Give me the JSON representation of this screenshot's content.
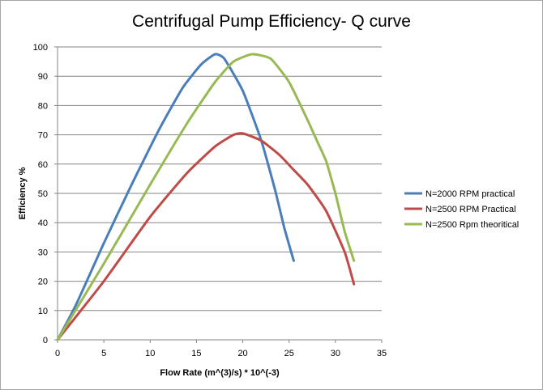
{
  "chart_data": {
    "type": "line",
    "title": "Centrifugal Pump Efficiency- Q curve",
    "xlabel": "Flow Rate (m^(3)/s) * 10^(-3)",
    "ylabel": "Efficiency %",
    "xlim": [
      0,
      35
    ],
    "ylim": [
      0,
      100
    ],
    "xticks": [
      0,
      5,
      10,
      15,
      20,
      25,
      30,
      35
    ],
    "yticks": [
      0,
      10,
      20,
      30,
      40,
      50,
      60,
      70,
      80,
      90,
      100
    ],
    "grid": "horizontal",
    "legend_position": "right",
    "series": [
      {
        "name": "N=2000 RPM practical",
        "color": "#4a7ebb",
        "points": [
          [
            0,
            0
          ],
          [
            2,
            12
          ],
          [
            5,
            33
          ],
          [
            8,
            53
          ],
          [
            11,
            72
          ],
          [
            13.5,
            86
          ],
          [
            15.5,
            94
          ],
          [
            17,
            97.5
          ],
          [
            18,
            96
          ],
          [
            20,
            85
          ],
          [
            22,
            68
          ],
          [
            23.5,
            51
          ],
          [
            24.5,
            38
          ],
          [
            25.5,
            27
          ]
        ]
      },
      {
        "name": "N=2500 RPM Practical",
        "color": "#be4b48",
        "points": [
          [
            0,
            0
          ],
          [
            5,
            20
          ],
          [
            10,
            42
          ],
          [
            14,
            57
          ],
          [
            17,
            66
          ],
          [
            19,
            70
          ],
          [
            20,
            70.5
          ],
          [
            22,
            68
          ],
          [
            24,
            63
          ],
          [
            25.5,
            58
          ],
          [
            27,
            53
          ],
          [
            29,
            44
          ],
          [
            31,
            30
          ],
          [
            32,
            19
          ]
        ]
      },
      {
        "name": "N=2500 Rpm theoritical",
        "color": "#98b954",
        "points": [
          [
            0,
            0
          ],
          [
            5,
            26
          ],
          [
            10,
            53
          ],
          [
            14,
            74
          ],
          [
            17,
            88
          ],
          [
            19,
            95
          ],
          [
            21,
            97.5
          ],
          [
            23,
            96
          ],
          [
            25,
            88
          ],
          [
            27,
            75
          ],
          [
            28,
            68
          ],
          [
            29,
            61
          ],
          [
            30,
            50
          ],
          [
            31,
            37
          ],
          [
            32,
            27
          ]
        ]
      }
    ]
  }
}
